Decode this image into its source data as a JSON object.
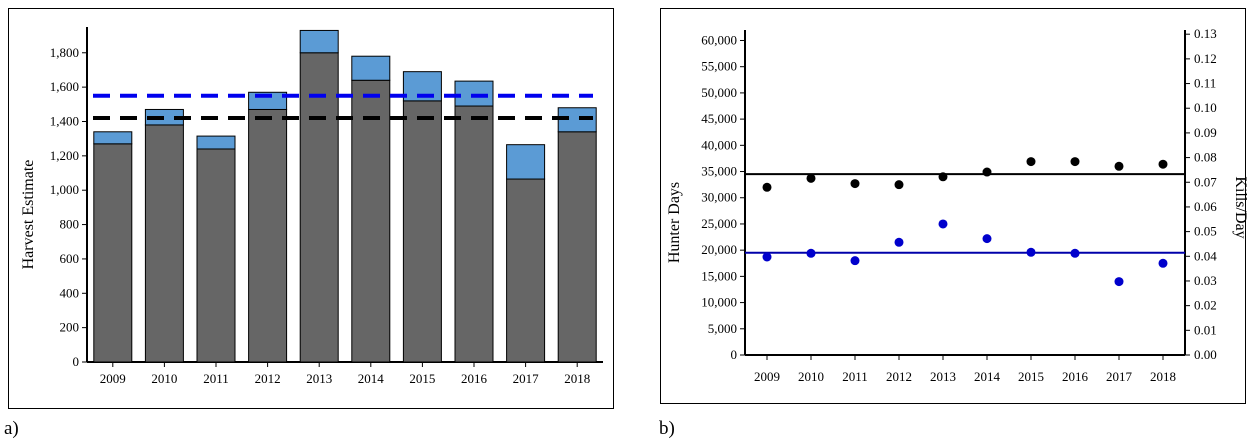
{
  "panels": {
    "a_label": "a)",
    "b_label": "b)"
  },
  "chart_data": [
    {
      "type": "bar",
      "stacked": true,
      "ylabel": "Harvest Estimate",
      "xlabel": "",
      "ylim": [
        0,
        1950
      ],
      "yticks": [
        0,
        200,
        400,
        600,
        800,
        1000,
        1200,
        1400,
        1600,
        1800
      ],
      "ytick_labels": [
        "0",
        "200",
        "400",
        "600",
        "800",
        "1,000",
        "1,200",
        "1,400",
        "1,600",
        "1,800"
      ],
      "categories": [
        "2009",
        "2010",
        "2011",
        "2012",
        "2013",
        "2014",
        "2015",
        "2016",
        "2017",
        "2018"
      ],
      "series": [
        {
          "color": "#666666",
          "values": [
            1270,
            1380,
            1240,
            1470,
            1800,
            1640,
            1520,
            1490,
            1065,
            1340
          ]
        },
        {
          "color": "#5b9bd5",
          "values": [
            70,
            90,
            75,
            100,
            130,
            140,
            170,
            145,
            200,
            140
          ]
        }
      ],
      "reference_lines": [
        {
          "value": 1550,
          "color": "#0000ee",
          "style": "dashed"
        },
        {
          "value": 1420,
          "color": "#000000",
          "style": "dashed"
        }
      ],
      "grid": false
    },
    {
      "type": "scatter",
      "ylabel": "Hunter Days",
      "y2label": "Kills/Day",
      "xlabel": "",
      "categories": [
        "2009",
        "2010",
        "2011",
        "2012",
        "2013",
        "2014",
        "2015",
        "2016",
        "2017",
        "2018"
      ],
      "ylim": [
        0,
        62000
      ],
      "yticks": [
        0,
        5000,
        10000,
        15000,
        20000,
        25000,
        30000,
        35000,
        40000,
        45000,
        50000,
        55000,
        60000
      ],
      "ytick_labels": [
        "0",
        "5,000",
        "10,000",
        "15,000",
        "20,000",
        "25,000",
        "30,000",
        "35,000",
        "40,000",
        "45,000",
        "50,000",
        "55,000",
        "60,000"
      ],
      "y2lim": [
        0,
        0.1317
      ],
      "y2ticks": [
        0,
        0.01,
        0.02,
        0.03,
        0.04,
        0.05,
        0.06,
        0.07,
        0.08,
        0.09,
        0.1,
        0.11,
        0.12,
        0.13
      ],
      "y2tick_labels": [
        "0.00",
        "0.01",
        "0.02",
        "0.03",
        "0.04",
        "0.05",
        "0.06",
        "0.07",
        "0.08",
        "0.09",
        "0.10",
        "0.11",
        "0.12",
        "0.13"
      ],
      "series": [
        {
          "color": "#000000",
          "axis": "left",
          "values": [
            32000,
            33700,
            32700,
            32500,
            34000,
            34900,
            36900,
            36900,
            36000,
            36400
          ]
        },
        {
          "color": "#0000cc",
          "axis": "left",
          "values": [
            18700,
            19400,
            18000,
            21500,
            25000,
            22200,
            19600,
            19400,
            14000,
            17500
          ]
        }
      ],
      "reference_lines": [
        {
          "value": 34500,
          "color": "#000000",
          "style": "solid"
        },
        {
          "value": 19500,
          "color": "#0000aa",
          "style": "solid"
        }
      ],
      "grid": false
    }
  ]
}
